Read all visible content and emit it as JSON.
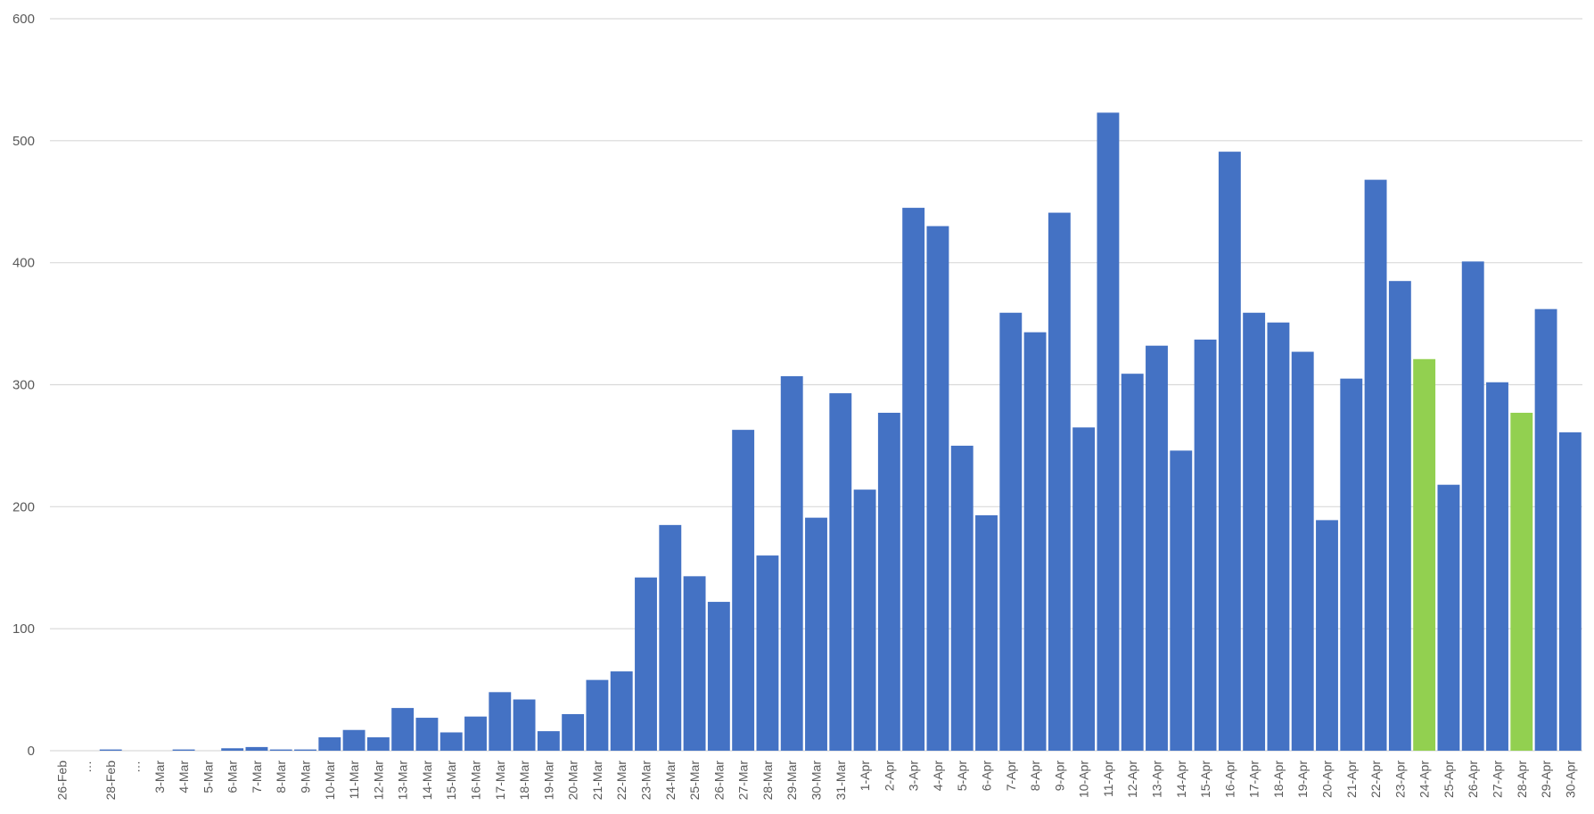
{
  "chart_data": {
    "type": "bar",
    "title": "",
    "xlabel": "",
    "ylabel": "",
    "ylim": [
      0,
      600
    ],
    "yticks": [
      0,
      100,
      200,
      300,
      400,
      500,
      600
    ],
    "grid": true,
    "legend": "none",
    "colors": {
      "default": "#4472c4",
      "highlight": "#92d050",
      "grid": "#d9d9d9",
      "text": "#595959"
    },
    "highlighted_categories": [
      "24-Apr",
      "28-Apr"
    ],
    "categories": [
      "26-Feb",
      "…",
      "28-Feb",
      "…",
      "3-Mar",
      "4-Mar",
      "5-Mar",
      "6-Mar",
      "7-Mar",
      "8-Mar",
      "9-Mar",
      "10-Mar",
      "11-Mar",
      "12-Mar",
      "13-Mar",
      "14-Mar",
      "15-Mar",
      "16-Mar",
      "17-Mar",
      "18-Mar",
      "19-Mar",
      "20-Mar",
      "21-Mar",
      "22-Mar",
      "23-Mar",
      "24-Mar",
      "25-Mar",
      "26-Mar",
      "27-Mar",
      "28-Mar",
      "29-Mar",
      "30-Mar",
      "31-Mar",
      "1-Apr",
      "2-Apr",
      "3-Apr",
      "4-Apr",
      "5-Apr",
      "6-Apr",
      "7-Apr",
      "8-Apr",
      "9-Apr",
      "10-Apr",
      "11-Apr",
      "12-Apr",
      "13-Apr",
      "14-Apr",
      "15-Apr",
      "16-Apr",
      "17-Apr",
      "18-Apr",
      "19-Apr",
      "20-Apr",
      "21-Apr",
      "22-Apr",
      "23-Apr",
      "24-Apr",
      "25-Apr",
      "26-Apr",
      "27-Apr",
      "28-Apr",
      "29-Apr",
      "30-Apr"
    ],
    "values": [
      0,
      0,
      1,
      0,
      0,
      1,
      0,
      2,
      3,
      1,
      1,
      11,
      17,
      11,
      35,
      27,
      15,
      28,
      48,
      42,
      16,
      30,
      58,
      65,
      142,
      185,
      143,
      122,
      263,
      160,
      307,
      191,
      293,
      214,
      277,
      445,
      430,
      250,
      193,
      359,
      343,
      441,
      265,
      523,
      309,
      332,
      246,
      337,
      491,
      359,
      351,
      327,
      189,
      305,
      468,
      385,
      321,
      218,
      401,
      302,
      277,
      362,
      261
    ]
  }
}
